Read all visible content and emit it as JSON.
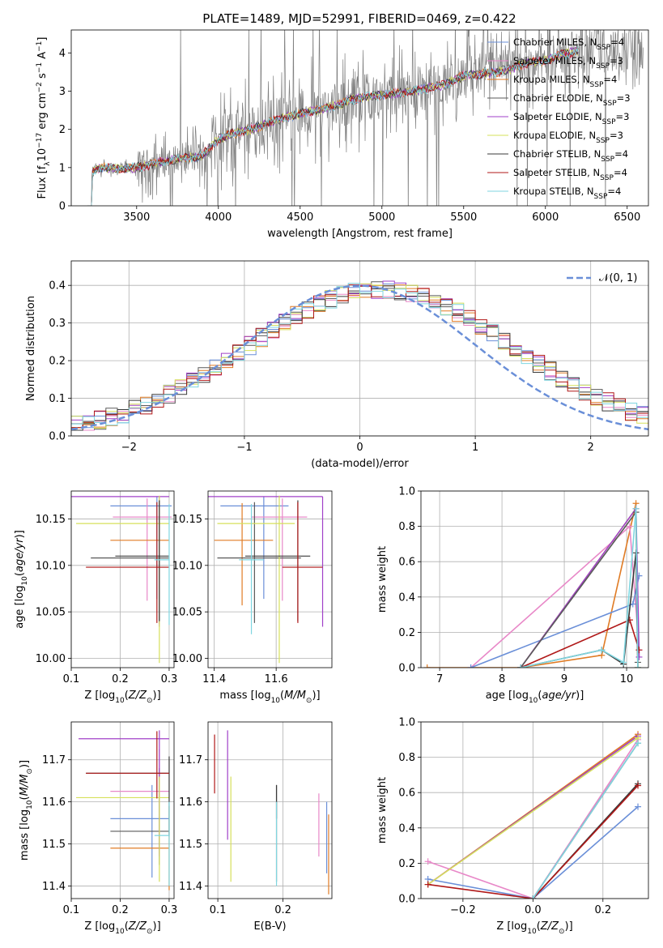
{
  "figure_title": "PLATE=1489, MJD=52991, FIBERID=0469, z=0.422",
  "colors": {
    "Chabrier MILES": "#6a8fd8",
    "Salpeter MILES": "#e888c8",
    "Kroupa MILES": "#e07b24",
    "Chabrier ELODIE": "#5a5a5a",
    "Salpeter ELODIE": "#a040c8",
    "Kroupa ELODIE": "#d6e05a",
    "Chabrier STELIB": "#3a3a3a",
    "Salpeter STELIB": "#b01818",
    "Kroupa STELIB": "#7fd6e0",
    "data": "#808080"
  },
  "chart_data": [
    {
      "id": "spectrum",
      "type": "line",
      "xlabel": "wavelength [Angstrom, rest frame]",
      "ylabel_html": "Flux [f<tspan baseline-shift='sub' font-size='9'>λ</tspan>10<tspan baseline-shift='super' font-size='9'>−17</tspan> erg cm<tspan baseline-shift='super' font-size='9'>−2</tspan> s<tspan baseline-shift='super' font-size='9'>−1</tspan> A<tspan baseline-shift='super' font-size='9'>−1</tspan>]",
      "xlim": [
        3100,
        6630
      ],
      "ylim": [
        0,
        4.6
      ],
      "xticks": [
        3500,
        4000,
        4500,
        5000,
        5500,
        6000,
        6500
      ],
      "yticks": [
        0,
        1,
        2,
        3,
        4
      ],
      "grid": false,
      "legend": "top-right",
      "legend_entries": [
        {
          "pre": "Chabrier MILES, N",
          "sub": "SSP",
          "post": "=4"
        },
        {
          "pre": "Salpeter MILES, N",
          "sub": "SSP",
          "post": "=3"
        },
        {
          "pre": "Kroupa MILES, N",
          "sub": "SSP",
          "post": "=4"
        },
        {
          "pre": "Chabrier ELODIE, N",
          "sub": "SSP",
          "post": "=3"
        },
        {
          "pre": "Salpeter ELODIE, N",
          "sub": "SSP",
          "post": "=3"
        },
        {
          "pre": "Kroupa ELODIE, N",
          "sub": "SSP",
          "post": "=3"
        },
        {
          "pre": "Chabrier STELIB, N",
          "sub": "SSP",
          "post": "=4"
        },
        {
          "pre": "Salpeter STELIB, N",
          "sub": "SSP",
          "post": "=4"
        },
        {
          "pre": "Kroupa STELIB, N",
          "sub": "SSP",
          "post": "=4"
        }
      ],
      "continuum": {
        "x": [
          3200,
          3240,
          3300,
          3400,
          3500,
          3600,
          3700,
          3800,
          3900,
          4000,
          4100,
          4200,
          4300,
          4400,
          4500,
          4600,
          4700,
          4800,
          4900,
          5000,
          5100,
          5200,
          5300,
          5400,
          5500,
          5600,
          5700,
          5800,
          5900,
          6000,
          6100,
          6200
        ],
        "y": [
          0.6,
          0.95,
          1.0,
          0.98,
          1.0,
          1.1,
          1.2,
          1.25,
          1.3,
          1.75,
          1.9,
          2.0,
          2.15,
          2.3,
          2.4,
          2.5,
          2.6,
          2.75,
          2.85,
          2.9,
          2.95,
          3.0,
          3.1,
          3.2,
          3.4,
          3.45,
          3.5,
          3.6,
          3.75,
          3.8,
          3.95,
          4.05
        ]
      },
      "data_x_range": [
        3220,
        6600
      ],
      "model_x_range": [
        3200,
        6200
      ]
    },
    {
      "id": "residuals",
      "type": "histogram",
      "xlabel": "(data-model)/error",
      "ylabel": "Normed distribution",
      "xlim": [
        -2.5,
        2.5
      ],
      "ylim": [
        0,
        0.465
      ],
      "xticks": [
        -2,
        -1,
        0,
        1,
        2
      ],
      "xticklabels": [
        "−2",
        "−1",
        "0",
        "1",
        "2"
      ],
      "yticks": [
        0.0,
        0.1,
        0.2,
        0.3,
        0.4
      ],
      "yticklabels": [
        "0.0",
        "0.1",
        "0.2",
        "0.3",
        "0.4"
      ],
      "grid": true,
      "legend": "top-right",
      "legend_label": "𝒩(0, 1)",
      "normal_curve": {
        "mu": 0,
        "sigma": 1,
        "color": "#6a8fd8",
        "dash": "8,4"
      },
      "bin_width": 0.1
    },
    {
      "id": "age_vs_Z",
      "type": "errorbar",
      "xlabel_pre": "Z [log",
      "xlabel_sub": "10",
      "xlabel_post": "(Z/Z",
      "xlabel_post2": ")]",
      "ylabel": "age  [log10(age/yr)]",
      "xlim": [
        0.1,
        0.31
      ],
      "ylim": [
        9.99,
        10.18
      ],
      "xticks": [
        0.1,
        0.2,
        0.3
      ],
      "xticklabels": [
        "0.1",
        "0.2",
        "0.3"
      ],
      "yticks": [
        10.0,
        10.05,
        10.1,
        10.15
      ],
      "yticklabels": [
        "10.00",
        "10.05",
        "10.10",
        "10.15"
      ],
      "grid": true,
      "points": [
        {
          "model": "Chabrier MILES",
          "x": 0.275,
          "y": 10.164,
          "xerr": [
            0.095,
            0.03
          ],
          "yerr": [
            0.1,
            0.01
          ]
        },
        {
          "model": "Salpeter MILES",
          "x": 0.255,
          "y": 10.152,
          "xerr": [
            0.07,
            0.05
          ],
          "yerr": [
            0.09,
            0.02
          ]
        },
        {
          "model": "Kroupa MILES",
          "x": 0.28,
          "y": 10.127,
          "xerr": [
            0.1,
            0.02
          ],
          "yerr": [
            0.09,
            0.04
          ]
        },
        {
          "model": "Chabrier ELODIE",
          "x": 0.28,
          "y": 10.108,
          "xerr": [
            0.14,
            0.02
          ],
          "yerr": [
            0.07,
            0.06
          ]
        },
        {
          "model": "Salpeter ELODIE",
          "x": 0.28,
          "y": 10.174,
          "xerr": [
            0.18,
            0.02
          ],
          "yerr": [
            0.14,
            0.0
          ]
        },
        {
          "model": "Kroupa ELODIE",
          "x": 0.28,
          "y": 10.145,
          "xerr": [
            0.17,
            0.02
          ],
          "yerr": [
            0.15,
            0.03
          ]
        },
        {
          "model": "Chabrier STELIB",
          "x": 0.28,
          "y": 10.11,
          "xerr": [
            0.09,
            0.02
          ],
          "yerr": [
            0.07,
            0.06
          ]
        },
        {
          "model": "Salpeter STELIB",
          "x": 0.275,
          "y": 10.098,
          "xerr": [
            0.145,
            0.025
          ],
          "yerr": [
            0.06,
            0.07
          ]
        },
        {
          "model": "Kroupa STELIB",
          "x": 0.3,
          "y": 10.106,
          "xerr": [
            0.03,
            0.0
          ],
          "yerr": [
            0.07,
            0.06
          ]
        }
      ]
    },
    {
      "id": "age_vs_mass",
      "type": "errorbar",
      "xlabel": "mass [log10(M/M⊙)]",
      "xlim": [
        11.38,
        11.78
      ],
      "ylim": [
        9.99,
        10.18
      ],
      "xticks": [
        11.4,
        11.6
      ],
      "xticklabels": [
        "11.4",
        "11.6"
      ],
      "yticks": [
        10.0,
        10.05,
        10.1,
        10.15
      ],
      "yticklabels": [
        "10.00",
        "10.05",
        "10.10",
        "10.15"
      ],
      "grid": true,
      "points": [
        {
          "model": "Chabrier MILES",
          "x": 11.56,
          "y": 10.164,
          "xerr": [
            0.14,
            0.08
          ],
          "yerr": [
            0.1,
            0.01
          ]
        },
        {
          "model": "Salpeter MILES",
          "x": 11.62,
          "y": 10.152,
          "xerr": [
            0.1,
            0.08
          ],
          "yerr": [
            0.09,
            0.02
          ]
        },
        {
          "model": "Kroupa MILES",
          "x": 11.49,
          "y": 10.127,
          "xerr": [
            0.09,
            0.1
          ],
          "yerr": [
            0.07,
            0.04
          ]
        },
        {
          "model": "Chabrier ELODIE",
          "x": 11.53,
          "y": 10.108,
          "xerr": [
            0.12,
            0.15
          ],
          "yerr": [
            0.07,
            0.06
          ]
        },
        {
          "model": "Salpeter ELODIE",
          "x": 11.75,
          "y": 10.174,
          "xerr": [
            0.42,
            0.0
          ],
          "yerr": [
            0.14,
            0.0
          ]
        },
        {
          "model": "Kroupa ELODIE",
          "x": 11.61,
          "y": 10.145,
          "xerr": [
            0.2,
            0.05
          ],
          "yerr": [
            0.15,
            0.03
          ]
        },
        {
          "model": "Chabrier STELIB",
          "x": 11.67,
          "y": 10.11,
          "xerr": [
            0.17,
            0.04
          ],
          "yerr": [
            0.07,
            0.06
          ]
        },
        {
          "model": "Salpeter STELIB",
          "x": 11.67,
          "y": 10.098,
          "xerr": [
            0.05,
            0.08
          ],
          "yerr": [
            0.06,
            0.07
          ]
        },
        {
          "model": "Kroupa STELIB",
          "x": 11.52,
          "y": 10.106,
          "xerr": [
            0.04,
            0.04
          ],
          "yerr": [
            0.08,
            0.06
          ]
        }
      ]
    },
    {
      "id": "mass_weight_vs_age",
      "type": "line",
      "xlabel": "age  [log10(age/yr)]",
      "ylabel": "mass weight",
      "xlim": [
        6.7,
        10.35
      ],
      "ylim": [
        0,
        1.0
      ],
      "xticks": [
        7,
        8,
        9,
        10
      ],
      "xticklabels": [
        "7",
        "8",
        "9",
        "10"
      ],
      "yticks": [
        0,
        0.2,
        0.4,
        0.6,
        0.8,
        1.0
      ],
      "yticklabels": [
        "0.0",
        "0.2",
        "0.4",
        "0.6",
        "0.8",
        "1.0"
      ],
      "grid": true,
      "series": [
        {
          "model": "Kroupa MILES",
          "x": [
            6.8,
            8.3,
            9.6,
            10.15,
            10.18
          ],
          "y": [
            0.0,
            0.0,
            0.07,
            0.93,
            0.0
          ]
        },
        {
          "model": "Salpeter MILES",
          "x": [
            7.5,
            10.05,
            10.2
          ],
          "y": [
            0.0,
            0.8,
            0.1
          ]
        },
        {
          "model": "Chabrier MILES",
          "x": [
            7.5,
            10.1,
            10.2
          ],
          "y": [
            0.0,
            0.36,
            0.52
          ]
        },
        {
          "model": "Kroupa ELODIE",
          "x": [
            8.3,
            10.15,
            10.18
          ],
          "y": [
            0.0,
            0.9,
            0.0
          ]
        },
        {
          "model": "Salpeter ELODIE",
          "x": [
            8.3,
            10.15,
            10.2
          ],
          "y": [
            0.0,
            0.9,
            0.06
          ]
        },
        {
          "model": "Chabrier ELODIE",
          "x": [
            8.3,
            10.15,
            10.18
          ],
          "y": [
            0.0,
            0.88,
            0.03
          ]
        },
        {
          "model": "Salpeter STELIB",
          "x": [
            8.3,
            10.05,
            10.2
          ],
          "y": [
            0.0,
            0.27,
            0.1
          ]
        },
        {
          "model": "Chabrier STELIB",
          "x": [
            8.3,
            9.6,
            9.95,
            10.15,
            10.18
          ],
          "y": [
            0.0,
            0.1,
            0.02,
            0.65,
            0.0
          ]
        },
        {
          "model": "Kroupa STELIB",
          "x": [
            8.3,
            9.6,
            9.95,
            10.15,
            10.18
          ],
          "y": [
            0.0,
            0.1,
            0.03,
            0.9,
            0.0
          ]
        }
      ]
    },
    {
      "id": "mass_vs_Z",
      "type": "errorbar",
      "xlabel": "Z [log10(Z/Z⊙)]",
      "ylabel": "mass [log10(M/M⊙)]",
      "xlim": [
        0.1,
        0.31
      ],
      "ylim": [
        11.37,
        11.79
      ],
      "xticks": [
        0.1,
        0.2,
        0.3
      ],
      "xticklabels": [
        "0.1",
        "0.2",
        "0.3"
      ],
      "yticks": [
        11.4,
        11.5,
        11.6,
        11.7
      ],
      "yticklabels": [
        "11.4",
        "11.5",
        "11.6",
        "11.7"
      ],
      "grid": true,
      "points": [
        {
          "model": "Chabrier MILES",
          "x": 0.265,
          "y": 11.56,
          "xerr": [
            0.085,
            0.035
          ],
          "yerr": [
            0.14,
            0.08
          ]
        },
        {
          "model": "Salpeter MILES",
          "x": 0.28,
          "y": 11.625,
          "xerr": [
            0.1,
            0.02
          ],
          "yerr": [
            0.15,
            0.1
          ]
        },
        {
          "model": "Kroupa MILES",
          "x": 0.3,
          "y": 11.49,
          "xerr": [
            0.12,
            0.0
          ],
          "yerr": [
            0.1,
            0.1
          ]
        },
        {
          "model": "Chabrier ELODIE",
          "x": 0.28,
          "y": 11.53,
          "xerr": [
            0.1,
            0.02
          ],
          "yerr": [
            0.08,
            0.15
          ]
        },
        {
          "model": "Salpeter ELODIE",
          "x": 0.28,
          "y": 11.75,
          "xerr": [
            0.165,
            0.02
          ],
          "yerr": [
            0.28,
            0.02
          ]
        },
        {
          "model": "Kroupa ELODIE",
          "x": 0.28,
          "y": 11.61,
          "xerr": [
            0.17,
            0.02
          ],
          "yerr": [
            0.2,
            0.05
          ]
        },
        {
          "model": "Chabrier STELIB",
          "x": 0.3,
          "y": 11.668,
          "xerr": [
            0.17,
            0.0
          ],
          "yerr": [
            0.15,
            0.04
          ]
        },
        {
          "model": "Salpeter STELIB",
          "x": 0.275,
          "y": 11.668,
          "xerr": [
            0.145,
            0.025
          ],
          "yerr": [
            0.06,
            0.1
          ]
        },
        {
          "model": "Kroupa STELIB",
          "x": 0.3,
          "y": 11.52,
          "xerr": [
            0.03,
            0.0
          ],
          "yerr": [
            0.12,
            0.08
          ]
        }
      ]
    },
    {
      "id": "mass_vs_ebv",
      "type": "errorbar",
      "xlabel": "E(B-V)",
      "xlim": [
        0.085,
        0.275
      ],
      "ylim": [
        11.37,
        11.79
      ],
      "xticks": [
        0.1,
        0.2
      ],
      "xticklabels": [
        "0.1",
        "0.2"
      ],
      "yticks": [
        11.4,
        11.5,
        11.6,
        11.7
      ],
      "yticklabels": [
        "11.4",
        "11.5",
        "11.6",
        "11.7"
      ],
      "grid": true,
      "points": [
        {
          "model": "Chabrier MILES",
          "x": 0.267,
          "y": 11.49,
          "yerr": [
            0.06,
            0.11
          ]
        },
        {
          "model": "Salpeter MILES",
          "x": 0.255,
          "y": 11.55,
          "yerr": [
            0.08,
            0.07
          ]
        },
        {
          "model": "Kroupa MILES",
          "x": 0.27,
          "y": 11.47,
          "yerr": [
            0.09,
            0.1
          ]
        },
        {
          "model": "Chabrier ELODIE",
          "x": 0.19,
          "y": 11.61,
          "yerr": [
            0.2,
            0.03
          ]
        },
        {
          "model": "Salpeter ELODIE",
          "x": 0.115,
          "y": 11.67,
          "yerr": [
            0.16,
            0.1
          ]
        },
        {
          "model": "Kroupa ELODIE",
          "x": 0.12,
          "y": 11.56,
          "yerr": [
            0.15,
            0.1
          ]
        },
        {
          "model": "Chabrier STELIB",
          "x": 0.19,
          "y": 11.62,
          "yerr": [
            0.06,
            0.02
          ]
        },
        {
          "model": "Salpeter STELIB",
          "x": 0.095,
          "y": 11.68,
          "yerr": [
            0.06,
            0.08
          ]
        },
        {
          "model": "Kroupa STELIB",
          "x": 0.19,
          "y": 11.5,
          "yerr": [
            0.1,
            0.1
          ]
        }
      ]
    },
    {
      "id": "mass_weight_vs_Z",
      "type": "line",
      "xlabel": "Z [log10(Z/Z⊙)]",
      "ylabel": "mass weight",
      "xlim": [
        -0.32,
        0.33
      ],
      "ylim": [
        0,
        1.0
      ],
      "xticks": [
        -0.2,
        0.0,
        0.2
      ],
      "xticklabels": [
        "−0.2",
        "0.0",
        "0.2"
      ],
      "yticks": [
        0,
        0.2,
        0.4,
        0.6,
        0.8,
        1.0
      ],
      "yticklabels": [
        "0.0",
        "0.2",
        "0.4",
        "0.6",
        "0.8",
        "1.0"
      ],
      "grid": true,
      "series": [
        {
          "model": "Salpeter MILES",
          "x": [
            -0.3,
            0.0,
            0.3
          ],
          "y": [
            0.21,
            0.0,
            0.9
          ]
        },
        {
          "model": "Chabrier MILES",
          "x": [
            -0.3,
            0.0,
            0.3
          ],
          "y": [
            0.11,
            0.0,
            0.52
          ]
        },
        {
          "model": "Kroupa MILES",
          "x": [
            -0.3,
            0.3
          ],
          "y": [
            0.08,
            0.93
          ]
        },
        {
          "model": "Chabrier ELODIE",
          "x": [
            0.0,
            0.3
          ],
          "y": [
            0.0,
            0.88
          ]
        },
        {
          "model": "Salpeter ELODIE",
          "x": [
            -0.3,
            0.3
          ],
          "y": [
            0.08,
            0.92
          ]
        },
        {
          "model": "Kroupa ELODIE",
          "x": [
            -0.3,
            0.3
          ],
          "y": [
            0.08,
            0.91
          ]
        },
        {
          "model": "Chabrier STELIB",
          "x": [
            0.0,
            0.3
          ],
          "y": [
            0.0,
            0.65
          ]
        },
        {
          "model": "Salpeter STELIB",
          "x": [
            -0.3,
            0.0,
            0.3
          ],
          "y": [
            0.08,
            0.0,
            0.64
          ]
        },
        {
          "model": "Kroupa STELIB",
          "x": [
            0.0,
            0.3
          ],
          "y": [
            0.0,
            0.88
          ]
        }
      ]
    }
  ]
}
